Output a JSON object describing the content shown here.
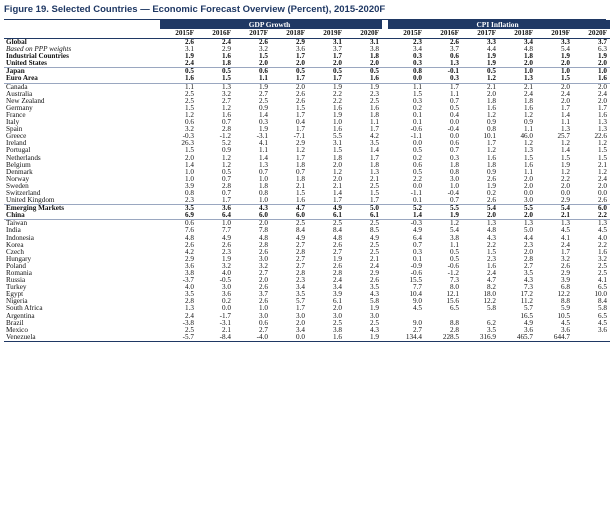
{
  "figure_title": "Figure 19. Selected Countries — Economic Forecast Overview (Percent), 2015-2020F",
  "groups": {
    "gdp": "GDP Growth",
    "cpi": "CPI Inflation"
  },
  "years": [
    "2015F",
    "2016F",
    "2017F",
    "2018F",
    "2019F",
    "2020F"
  ],
  "rows": [
    {
      "name": "Global",
      "style": "bold",
      "gdp": [
        "2.6",
        "2.4",
        "2.6",
        "2.9",
        "3.1",
        "3.1"
      ],
      "cpi": [
        "2.3",
        "2.6",
        "3.3",
        "3.4",
        "3.3",
        "3.7"
      ]
    },
    {
      "name": "Based on PPP weights",
      "style": "italic",
      "gdp": [
        "3.1",
        "2.9",
        "3.2",
        "3.6",
        "3.7",
        "3.8"
      ],
      "cpi": [
        "3.4",
        "3.7",
        "4.4",
        "4.8",
        "5.4",
        "6.3"
      ]
    },
    {
      "name": "Industrial Countries",
      "style": "bold",
      "gdp": [
        "1.9",
        "1.6",
        "1.5",
        "1.7",
        "1.7",
        "1.8"
      ],
      "cpi": [
        "0.3",
        "0.6",
        "1.9",
        "1.8",
        "1.9",
        "1.9"
      ]
    },
    {
      "name": "United States",
      "style": "bold",
      "gdp": [
        "2.4",
        "1.8",
        "2.0",
        "2.0",
        "2.0",
        "2.0"
      ],
      "cpi": [
        "0.3",
        "1.3",
        "1.9",
        "2.0",
        "2.0",
        "2.0"
      ]
    },
    {
      "name": "Japan",
      "style": "bold",
      "gdp": [
        "0.5",
        "0.5",
        "0.6",
        "0.5",
        "0.5",
        "0.5"
      ],
      "cpi": [
        "0.8",
        "-0.1",
        "0.5",
        "1.0",
        "1.0",
        "1.0"
      ]
    },
    {
      "name": "Euro Area",
      "style": "bold",
      "gdp": [
        "1.6",
        "1.5",
        "1.1",
        "1.7",
        "1.7",
        "1.6"
      ],
      "cpi": [
        "0.0",
        "0.3",
        "1.2",
        "1.3",
        "1.5",
        "1.6"
      ]
    },
    {
      "name": "Canada",
      "style": "",
      "gdp": [
        "1.1",
        "1.3",
        "1.9",
        "2.0",
        "1.9",
        "1.9"
      ],
      "cpi": [
        "1.1",
        "1.7",
        "2.1",
        "2.1",
        "2.0",
        "2.0"
      ]
    },
    {
      "name": "Australia",
      "style": "",
      "gdp": [
        "2.5",
        "3.2",
        "2.7",
        "2.6",
        "2.2",
        "2.3"
      ],
      "cpi": [
        "1.5",
        "1.1",
        "2.0",
        "2.4",
        "2.4",
        "2.4"
      ]
    },
    {
      "name": "New Zealand",
      "style": "",
      "gdp": [
        "2.5",
        "2.7",
        "2.5",
        "2.6",
        "2.2",
        "2.5"
      ],
      "cpi": [
        "0.3",
        "0.7",
        "1.8",
        "1.8",
        "2.0",
        "2.0"
      ]
    },
    {
      "name": "Germany",
      "style": "",
      "gdp": [
        "1.5",
        "1.2",
        "0.9",
        "1.5",
        "1.6",
        "1.6"
      ],
      "cpi": [
        "0.2",
        "0.5",
        "1.6",
        "1.6",
        "1.7",
        "1.7"
      ]
    },
    {
      "name": "France",
      "style": "",
      "gdp": [
        "1.2",
        "1.6",
        "1.4",
        "1.7",
        "1.9",
        "1.8"
      ],
      "cpi": [
        "0.1",
        "0.4",
        "1.2",
        "1.2",
        "1.4",
        "1.6"
      ]
    },
    {
      "name": "Italy",
      "style": "",
      "gdp": [
        "0.6",
        "0.7",
        "0.3",
        "0.4",
        "1.0",
        "1.1"
      ],
      "cpi": [
        "0.1",
        "0.0",
        "0.9",
        "0.9",
        "1.1",
        "1.3"
      ]
    },
    {
      "name": "Spain",
      "style": "",
      "gdp": [
        "3.2",
        "2.8",
        "1.9",
        "1.7",
        "1.6",
        "1.7"
      ],
      "cpi": [
        "-0.6",
        "-0.4",
        "0.8",
        "1.1",
        "1.3",
        "1.3"
      ]
    },
    {
      "name": "Greece",
      "style": "",
      "gdp": [
        "-0.3",
        "-1.2",
        "-3.1",
        "-7.1",
        "5.5",
        "4.2"
      ],
      "cpi": [
        "-1.1",
        "0.0",
        "10.1",
        "46.0",
        "25.7",
        "22.6"
      ]
    },
    {
      "name": "Ireland",
      "style": "",
      "gdp": [
        "26.3",
        "5.2",
        "4.1",
        "2.9",
        "3.1",
        "3.5"
      ],
      "cpi": [
        "0.0",
        "0.6",
        "1.7",
        "1.2",
        "1.2",
        "1.2"
      ]
    },
    {
      "name": "Portugal",
      "style": "",
      "gdp": [
        "1.5",
        "0.9",
        "1.1",
        "1.2",
        "1.5",
        "1.4"
      ],
      "cpi": [
        "0.5",
        "0.7",
        "1.2",
        "1.3",
        "1.4",
        "1.5"
      ]
    },
    {
      "name": "Netherlands",
      "style": "",
      "gdp": [
        "2.0",
        "1.2",
        "1.4",
        "1.7",
        "1.8",
        "1.7"
      ],
      "cpi": [
        "0.2",
        "0.3",
        "1.6",
        "1.5",
        "1.5",
        "1.5"
      ]
    },
    {
      "name": "Belgium",
      "style": "",
      "gdp": [
        "1.4",
        "1.2",
        "1.3",
        "1.8",
        "2.0",
        "1.8"
      ],
      "cpi": [
        "0.6",
        "1.8",
        "1.8",
        "1.6",
        "1.9",
        "2.1"
      ]
    },
    {
      "name": "Denmark",
      "style": "",
      "gdp": [
        "1.0",
        "0.5",
        "0.7",
        "0.7",
        "1.2",
        "1.3"
      ],
      "cpi": [
        "0.5",
        "0.8",
        "0.9",
        "1.1",
        "1.2",
        "1.2"
      ]
    },
    {
      "name": "Norway",
      "style": "",
      "gdp": [
        "1.0",
        "0.7",
        "1.0",
        "1.8",
        "2.0",
        "2.1"
      ],
      "cpi": [
        "2.2",
        "3.0",
        "2.6",
        "2.0",
        "2.2",
        "2.4"
      ]
    },
    {
      "name": "Sweden",
      "style": "",
      "gdp": [
        "3.9",
        "2.8",
        "1.8",
        "2.1",
        "2.1",
        "2.5"
      ],
      "cpi": [
        "0.0",
        "1.0",
        "1.9",
        "2.0",
        "2.0",
        "2.0"
      ]
    },
    {
      "name": "Switzerland",
      "style": "",
      "gdp": [
        "0.8",
        "0.7",
        "0.8",
        "1.5",
        "1.4",
        "1.5"
      ],
      "cpi": [
        "-1.1",
        "-0.4",
        "0.2",
        "0.0",
        "0.0",
        "0.0"
      ]
    },
    {
      "name": "United Kingdom",
      "style": "",
      "gdp": [
        "2.3",
        "1.7",
        "1.0",
        "1.6",
        "1.7",
        "1.7"
      ],
      "cpi": [
        "0.1",
        "0.7",
        "2.6",
        "3.0",
        "2.9",
        "2.6"
      ]
    },
    {
      "name": "Emerging Markets",
      "style": "bold",
      "gdp": [
        "3.5",
        "3.6",
        "4.3",
        "4.7",
        "4.9",
        "5.0"
      ],
      "cpi": [
        "5.2",
        "5.5",
        "5.4",
        "5.5",
        "5.4",
        "6.0"
      ]
    },
    {
      "name": "China",
      "style": "bold",
      "gdp": [
        "6.9",
        "6.4",
        "6.0",
        "6.0",
        "6.1",
        "6.1"
      ],
      "cpi": [
        "1.4",
        "1.9",
        "2.0",
        "2.0",
        "2.1",
        "2.2"
      ]
    },
    {
      "name": "Taiwan",
      "style": "",
      "gdp": [
        "0.6",
        "1.0",
        "2.0",
        "2.5",
        "2.5",
        "2.5"
      ],
      "cpi": [
        "-0.3",
        "1.2",
        "1.3",
        "1.3",
        "1.3",
        "1.3"
      ]
    },
    {
      "name": "India",
      "style": "",
      "gdp": [
        "7.6",
        "7.7",
        "7.8",
        "8.4",
        "8.4",
        "8.5"
      ],
      "cpi": [
        "4.9",
        "5.4",
        "4.8",
        "5.0",
        "4.5",
        "4.5"
      ]
    },
    {
      "name": "Indonesia",
      "style": "",
      "gdp": [
        "4.8",
        "4.9",
        "4.8",
        "4.9",
        "4.8",
        "4.9"
      ],
      "cpi": [
        "6.4",
        "3.8",
        "4.3",
        "4.4",
        "4.1",
        "4.0"
      ]
    },
    {
      "name": "Korea",
      "style": "",
      "gdp": [
        "2.6",
        "2.6",
        "2.8",
        "2.7",
        "2.6",
        "2.5"
      ],
      "cpi": [
        "0.7",
        "1.1",
        "2.2",
        "2.3",
        "2.4",
        "2.2"
      ]
    },
    {
      "name": "Czech",
      "style": "",
      "gdp": [
        "4.2",
        "2.3",
        "2.6",
        "2.8",
        "2.7",
        "2.5"
      ],
      "cpi": [
        "0.3",
        "0.5",
        "1.5",
        "2.0",
        "1.7",
        "1.6"
      ]
    },
    {
      "name": "Hungary",
      "style": "",
      "gdp": [
        "2.9",
        "1.9",
        "3.0",
        "2.7",
        "1.9",
        "2.1"
      ],
      "cpi": [
        "0.1",
        "0.5",
        "2.3",
        "2.8",
        "3.2",
        "3.2"
      ]
    },
    {
      "name": "Poland",
      "style": "",
      "gdp": [
        "3.6",
        "3.2",
        "3.2",
        "2.7",
        "2.6",
        "2.4"
      ],
      "cpi": [
        "-0.9",
        "-0.6",
        "1.6",
        "2.7",
        "2.6",
        "2.5"
      ]
    },
    {
      "name": "Romania",
      "style": "",
      "gdp": [
        "3.8",
        "4.0",
        "2.7",
        "2.8",
        "2.8",
        "2.9"
      ],
      "cpi": [
        "-0.6",
        "-1.2",
        "2.4",
        "3.5",
        "2.9",
        "2.5"
      ]
    },
    {
      "name": "Russia",
      "style": "",
      "gdp": [
        "-3.7",
        "-0.5",
        "2.0",
        "2.3",
        "2.4",
        "2.6"
      ],
      "cpi": [
        "15.5",
        "7.3",
        "4.7",
        "4.3",
        "3.9",
        "4.1"
      ]
    },
    {
      "name": "Turkey",
      "style": "",
      "gdp": [
        "4.0",
        "3.0",
        "2.6",
        "3.4",
        "3.4",
        "3.5"
      ],
      "cpi": [
        "7.7",
        "8.0",
        "8.2",
        "7.3",
        "6.8",
        "6.5"
      ]
    },
    {
      "name": "Egypt",
      "style": "",
      "gdp": [
        "3.5",
        "3.6",
        "3.7",
        "3.5",
        "3.9",
        "4.3"
      ],
      "cpi": [
        "10.4",
        "12.1",
        "18.0",
        "17.2",
        "12.2",
        "10.0"
      ]
    },
    {
      "name": "Nigeria",
      "style": "",
      "gdp": [
        "2.8",
        "0.2",
        "2.6",
        "5.7",
        "6.1",
        "5.8"
      ],
      "cpi": [
        "9.0",
        "15.6",
        "12.2",
        "11.2",
        "8.8",
        "8.4"
      ]
    },
    {
      "name": "South Africa",
      "style": "",
      "gdp": [
        "1.3",
        "0.0",
        "1.0",
        "1.7",
        "2.0",
        "1.9"
      ],
      "cpi": [
        "4.5",
        "6.5",
        "5.8",
        "5.7",
        "5.9",
        "5.8"
      ]
    },
    {
      "name": "Argentina",
      "style": "",
      "gdp": [
        "2.4",
        "-1.7",
        "3.0",
        "3.0",
        "3.0",
        "3.0"
      ],
      "cpi": [
        "",
        "",
        "",
        "16.5",
        "10.5",
        "6.5"
      ]
    },
    {
      "name": "Brazil",
      "style": "",
      "gdp": [
        "-3.8",
        "-3.1",
        "0.6",
        "2.0",
        "2.5",
        "2.5"
      ],
      "cpi": [
        "9.0",
        "8.8",
        "6.2",
        "4.9",
        "4.5",
        "4.5"
      ]
    },
    {
      "name": "Mexico",
      "style": "",
      "gdp": [
        "2.5",
        "2.1",
        "2.7",
        "3.4",
        "3.8",
        "4.3"
      ],
      "cpi": [
        "2.7",
        "2.8",
        "3.5",
        "3.6",
        "3.6",
        "3.6"
      ]
    },
    {
      "name": "Venezuela",
      "style": "",
      "gdp": [
        "-5.7",
        "-8.4",
        "-4.0",
        "0.0",
        "1.6",
        "1.9"
      ],
      "cpi": [
        "134.4",
        "228.5",
        "316.9",
        "465.7",
        "644.7",
        ""
      ]
    }
  ]
}
